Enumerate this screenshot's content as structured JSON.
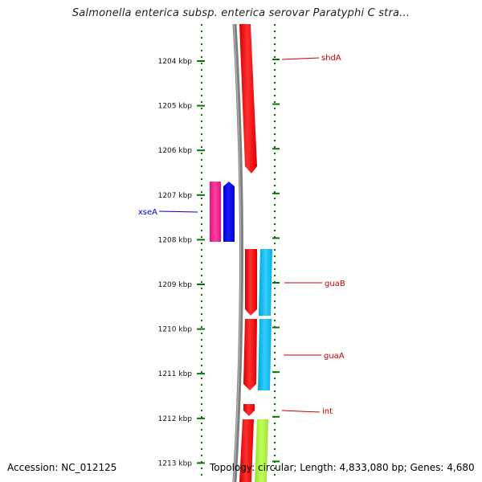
{
  "title": "Salmonella enterica subsp. enterica serovar Paratyphi C stra...",
  "footer": {
    "accession": "Accession: NC_012125",
    "summary": "Topology: circular; Length: 4,833,080 bp; Genes: 4,680"
  },
  "axis": {
    "unit": "kbp",
    "ticks": [
      "1204 kbp",
      "1205 kbp",
      "1206 kbp",
      "1207 kbp",
      "1208 kbp",
      "1209 kbp",
      "1210 kbp",
      "1211 kbp",
      "1212 kbp",
      "1213 kbp"
    ]
  },
  "genes": [
    {
      "name": "shdA",
      "strand": "forward",
      "color": "#ff0000",
      "label_color": "#cc0000"
    },
    {
      "name": "xseA",
      "strand": "reverse",
      "color": "#0000ff",
      "label_color": "#0000cc"
    },
    {
      "name": "guaB",
      "strand": "forward",
      "color": "#ff0000",
      "label_color": "#cc0000"
    },
    {
      "name": "guaA",
      "strand": "forward",
      "color": "#ff0000",
      "label_color": "#cc0000"
    },
    {
      "name": "int",
      "strand": "forward",
      "color": "#ff0000",
      "label_color": "#cc0000"
    }
  ],
  "colors": {
    "backbone": "#808080",
    "ticks": "#007700",
    "cog_pink": "#ff3399",
    "cog_cyan": "#00bbee",
    "cog_lime": "#aaee44"
  }
}
